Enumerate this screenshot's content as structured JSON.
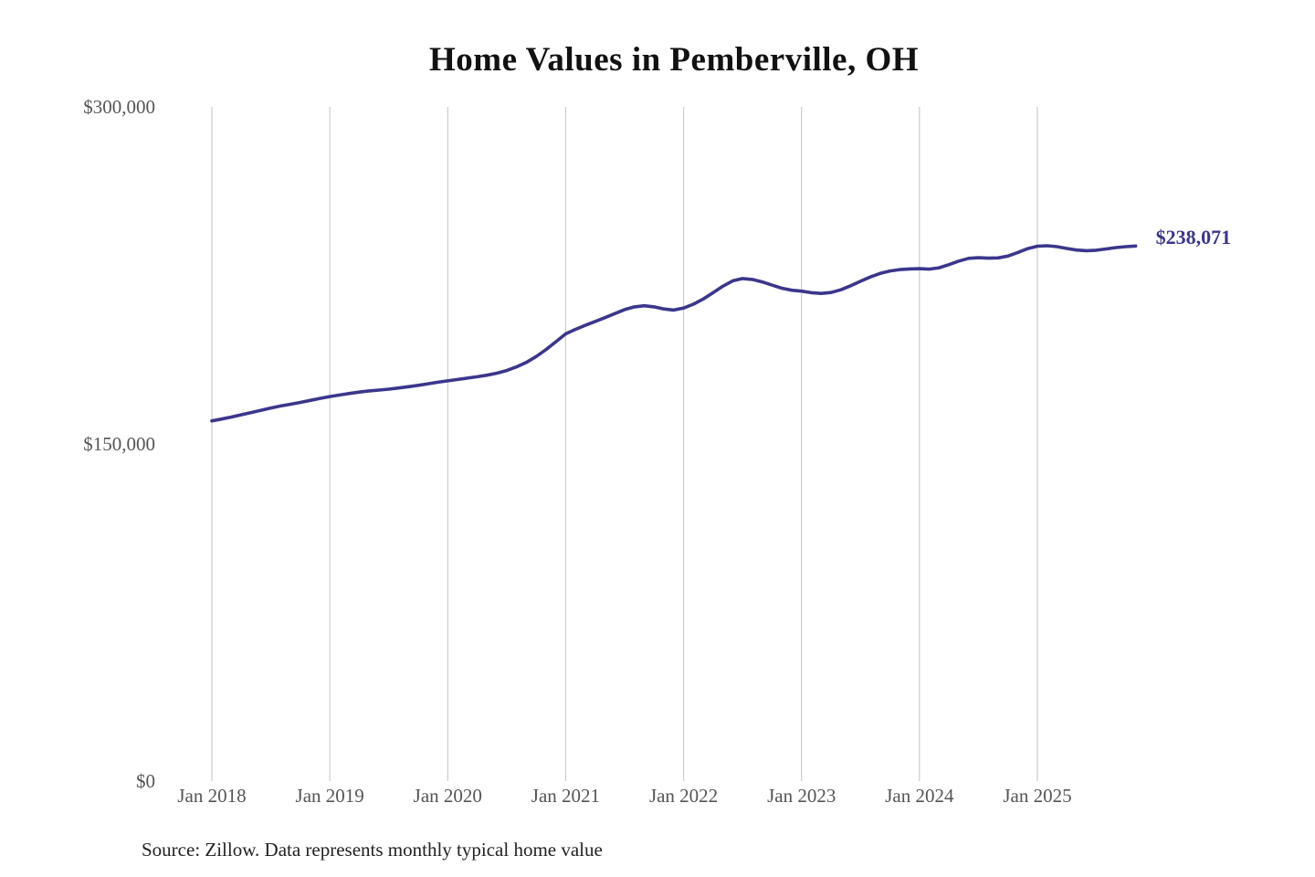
{
  "title": "Home Values in Pemberville, OH",
  "source_note": "Source: Zillow. Data represents monthly typical home value",
  "end_label": "$238,071",
  "colors": {
    "line": "#3b368c",
    "end_label_text": "#3b368c",
    "grid": "#cccccc",
    "axis_text": "#555555",
    "title_text": "#111111",
    "source_text": "#222222",
    "background": "#ffffff"
  },
  "chart_data": {
    "type": "line",
    "title": "Home Values in Pemberville, OH",
    "xlabel": "",
    "ylabel": "",
    "ylim": [
      0,
      300000
    ],
    "grid": "vertical-only",
    "legend": "none",
    "x_start_month": "2018-01",
    "x_interval": "monthly",
    "x_tick_labels": [
      "Jan 2018",
      "Jan 2019",
      "Jan 2020",
      "Jan 2021",
      "Jan 2022",
      "Jan 2023",
      "Jan 2024",
      "Jan 2025"
    ],
    "y_ticks": [
      {
        "label": "$0",
        "value": 0
      },
      {
        "label": "$150,000",
        "value": 150000
      },
      {
        "label": "$300,000",
        "value": 300000
      }
    ],
    "series": [
      {
        "name": "Monthly typical home value",
        "final_value": 238071,
        "final_value_label": "$238,071",
        "values": [
          160300,
          161100,
          162000,
          163000,
          164000,
          165000,
          166000,
          166900,
          167700,
          168500,
          169400,
          170300,
          171100,
          171800,
          172500,
          173100,
          173600,
          174000,
          174400,
          174900,
          175500,
          176100,
          176800,
          177500,
          178100,
          178700,
          179300,
          179900,
          180600,
          181500,
          182700,
          184300,
          186300,
          188900,
          192000,
          195500,
          199000,
          201000,
          202800,
          204500,
          206200,
          208000,
          209800,
          211000,
          211500,
          211000,
          210100,
          209600,
          210500,
          212200,
          214500,
          217300,
          220200,
          222600,
          223600,
          223200,
          222100,
          220700,
          219300,
          218400,
          218000,
          217300,
          217000,
          217400,
          218600,
          220400,
          222400,
          224300,
          225900,
          227000,
          227600,
          227900,
          228000,
          227800,
          228400,
          229800,
          231400,
          232600,
          232900,
          232700,
          232800,
          233600,
          235200,
          236900,
          238000,
          238200,
          237800,
          237000,
          236300,
          236000,
          236200,
          236800,
          237400,
          237800,
          238071
        ]
      }
    ]
  }
}
